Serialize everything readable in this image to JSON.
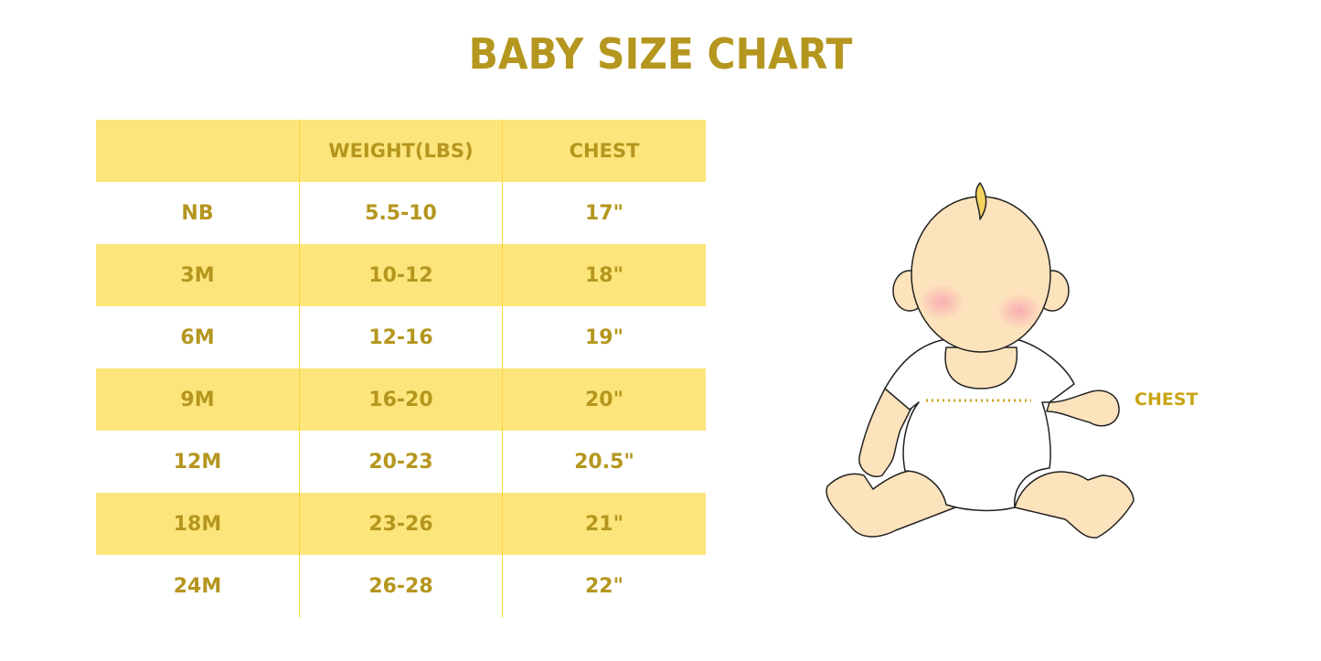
{
  "title": "BABY SIZE CHART",
  "table": {
    "headers": [
      "",
      "WEIGHT(LBS)",
      "CHEST"
    ],
    "rows": [
      {
        "size": "NB",
        "weight": "5.5-10",
        "chest": "17\""
      },
      {
        "size": "3M",
        "weight": "10-12",
        "chest": "18\""
      },
      {
        "size": "6M",
        "weight": "12-16",
        "chest": "19\""
      },
      {
        "size": "9M",
        "weight": "16-20",
        "chest": "20\""
      },
      {
        "size": "12M",
        "weight": "20-23",
        "chest": "20.5\""
      },
      {
        "size": "18M",
        "weight": "23-26",
        "chest": "21\""
      },
      {
        "size": "24M",
        "weight": "26-28",
        "chest": "22\""
      }
    ]
  },
  "illustration": {
    "chest_label": "CHEST"
  },
  "colors": {
    "text": "#B5961E",
    "band": "#FCE57A",
    "skin": "#FDE3BC"
  }
}
